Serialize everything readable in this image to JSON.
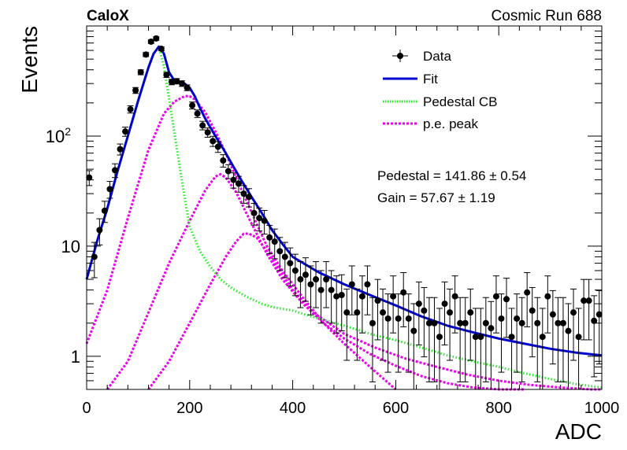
{
  "header": {
    "experiment_label": "CaloX",
    "run_label": "Cosmic Run 688"
  },
  "fit_results": {
    "pedestal": "Pedestal = 141.86 ± 0.54",
    "gain": "Gain = 57.67 ± 1.19"
  },
  "colors": {
    "data": "#000000",
    "fit": "#0000cc",
    "pedestal": "#22ee22",
    "pe_peak": "#ee00ee"
  },
  "chart_data": {
    "type": "scatter",
    "xlabel": "ADC",
    "ylabel": "Events",
    "xlim": [
      0,
      1000
    ],
    "ylim": [
      0.5,
      1000
    ],
    "y_scale": "log",
    "x_ticks": [
      0,
      200,
      400,
      600,
      800,
      1000
    ],
    "y_ticks": [
      {
        "value": 1,
        "label": "1"
      },
      {
        "value": 10,
        "label": "10"
      },
      {
        "value": 100,
        "label": "10",
        "sup": "2"
      }
    ],
    "legend": {
      "position": "top-right",
      "entries": [
        {
          "label": "Data",
          "style": "marker",
          "color": "#000000"
        },
        {
          "label": "Fit",
          "style": "solid",
          "color": "#0000cc"
        },
        {
          "label": "Pedestal CB",
          "style": "dotted",
          "color": "#22ee22"
        },
        {
          "label": "p.e. peak",
          "style": "dashed",
          "color": "#ee00ee"
        }
      ]
    },
    "data_points": {
      "x": [
        5,
        15,
        25,
        35,
        45,
        55,
        65,
        75,
        85,
        95,
        105,
        115,
        125,
        135,
        145,
        155,
        165,
        175,
        185,
        195,
        205,
        215,
        225,
        235,
        245,
        255,
        265,
        275,
        285,
        295,
        305,
        315,
        325,
        335,
        345,
        355,
        365,
        375,
        385,
        395,
        405,
        415,
        425,
        435,
        445,
        455,
        465,
        475,
        485,
        495,
        505,
        515,
        525,
        535,
        545,
        555,
        565,
        575,
        585,
        595,
        605,
        615,
        625,
        635,
        645,
        655,
        665,
        675,
        685,
        695,
        705,
        715,
        725,
        735,
        745,
        755,
        765,
        775,
        785,
        795,
        805,
        815,
        825,
        835,
        845,
        855,
        865,
        875,
        885,
        895,
        905,
        915,
        925,
        935,
        945,
        955,
        965,
        975,
        985,
        995
      ],
      "y": [
        42,
        8,
        14,
        21,
        33,
        49,
        76,
        110,
        175,
        260,
        380,
        550,
        720,
        770,
        620,
        360,
        310,
        315,
        300,
        275,
        190,
        160,
        125,
        108,
        90,
        80,
        60,
        48,
        40,
        37,
        30,
        28,
        20,
        18,
        17,
        12,
        11,
        9,
        8,
        7,
        6,
        5,
        5.5,
        4.5,
        5,
        4,
        5,
        4,
        3.5,
        3.6,
        2.5,
        4.5,
        2.5,
        3.5,
        4.5,
        2,
        3.2,
        2.5,
        2.2,
        3.5,
        2.2,
        3.8,
        2.2,
        1.7,
        3,
        2.6,
        2,
        2,
        1.5,
        3,
        2.5,
        3.5,
        2,
        2,
        2.5,
        1.5,
        1.5,
        2,
        1.8,
        3.5,
        2.2,
        3.3,
        1.5,
        2.2,
        2,
        3.8,
        2.6,
        2,
        1.5,
        3.5,
        2.4,
        2,
        2,
        1.7,
        2.5,
        1.5,
        3.2,
        3.2,
        2.1,
        2.4
      ]
    },
    "curves": [
      {
        "name": "Fit",
        "x": [
          0,
          20,
          40,
          60,
          80,
          100,
          120,
          130,
          140,
          150,
          160,
          170,
          180,
          190,
          200,
          210,
          220,
          230,
          240,
          250,
          260,
          270,
          280,
          290,
          300,
          320,
          340,
          360,
          380,
          400,
          450,
          500,
          550,
          600,
          650,
          700,
          750,
          800,
          850,
          900,
          950,
          1000
        ],
        "y": [
          5,
          11,
          22,
          48,
          100,
          210,
          420,
          560,
          650,
          560,
          380,
          320,
          310,
          300,
          275,
          230,
          180,
          145,
          120,
          100,
          84,
          70,
          58,
          48,
          40,
          28,
          20,
          14,
          10.5,
          8,
          5.8,
          4.5,
          3.6,
          2.9,
          2.3,
          1.9,
          1.65,
          1.45,
          1.3,
          1.17,
          1.08,
          1.02
        ]
      },
      {
        "name": "Pedestal CB",
        "x": [
          0,
          20,
          40,
          60,
          80,
          100,
          120,
          130,
          140,
          150,
          160,
          170,
          180,
          190,
          200,
          220,
          240,
          260,
          280,
          300,
          320,
          340,
          360,
          400,
          450,
          500,
          550,
          600,
          650,
          700,
          750,
          800,
          850,
          900,
          950,
          1000
        ],
        "y": [
          5,
          11,
          22,
          48,
          100,
          210,
          420,
          560,
          640,
          430,
          220,
          110,
          55,
          28,
          15,
          9,
          6.5,
          5,
          4.2,
          3.7,
          3.3,
          3,
          2.8,
          2.6,
          2.2,
          1.9,
          1.6,
          1.4,
          1.2,
          1.02,
          0.9,
          0.8,
          0.7,
          0.62,
          0.56,
          0.52
        ]
      },
      {
        "name": "p.e. peak 1",
        "x": [
          0,
          40,
          80,
          120,
          150,
          170,
          190,
          200,
          210,
          230,
          250,
          270,
          290,
          310,
          330,
          350,
          380,
          420,
          460,
          500,
          550,
          600
        ],
        "y": [
          1.3,
          4,
          18,
          75,
          160,
          205,
          230,
          230,
          215,
          165,
          110,
          70,
          42,
          26,
          16,
          10,
          6,
          3.4,
          2,
          1.3,
          0.8,
          0.5
        ]
      },
      {
        "name": "p.e. peak 2",
        "x": [
          40,
          80,
          120,
          160,
          200,
          230,
          250,
          260,
          270,
          290,
          310,
          330,
          350,
          380,
          420,
          460,
          500,
          550,
          600,
          650,
          700,
          750,
          800,
          850
        ],
        "y": [
          0.5,
          0.9,
          2.5,
          7,
          17,
          32,
          43,
          45,
          42,
          31,
          20,
          13,
          8.5,
          5,
          3,
          2,
          1.45,
          1.05,
          0.82,
          0.66,
          0.57,
          0.52,
          0.5,
          0.5
        ]
      },
      {
        "name": "p.e. peak 3",
        "x": [
          120,
          160,
          200,
          240,
          270,
          290,
          305,
          315,
          330,
          350,
          370,
          400,
          440,
          500,
          560,
          620,
          680,
          740,
          800,
          860,
          920,
          980,
          1000
        ],
        "y": [
          0.5,
          0.9,
          2,
          4.5,
          8,
          11,
          13,
          13,
          12,
          9,
          6.5,
          4,
          2.5,
          1.6,
          1.2,
          0.95,
          0.8,
          0.68,
          0.6,
          0.55,
          0.52,
          0.5,
          0.5
        ]
      }
    ]
  }
}
